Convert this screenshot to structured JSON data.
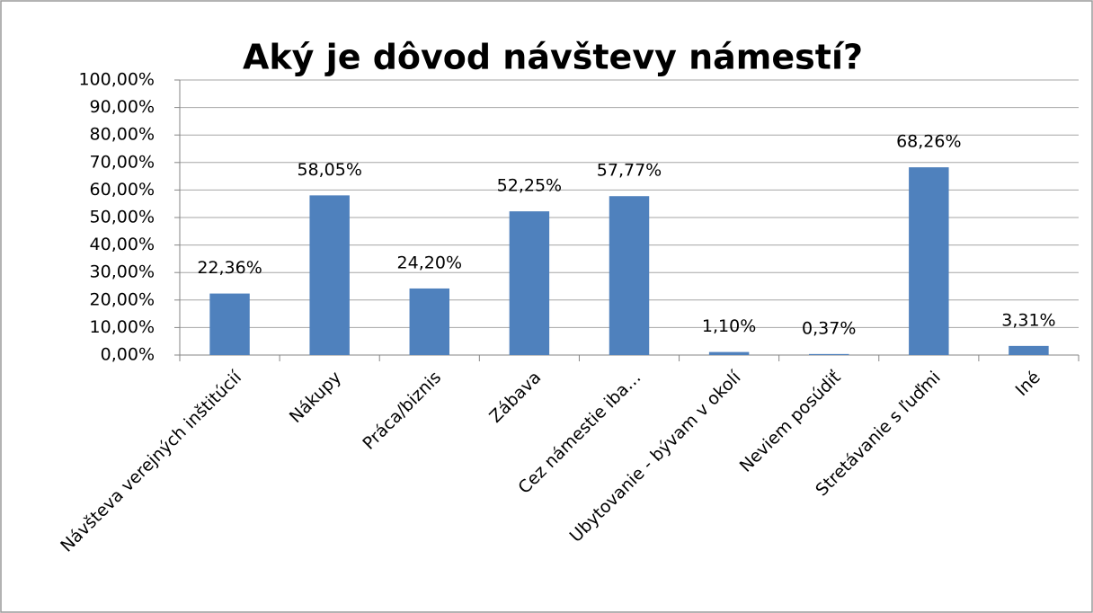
{
  "chart_data": {
    "type": "bar",
    "title": "Aký je dôvod návštevy námestí?",
    "categories": [
      "Návšteva verejných inštitúcií",
      "Nákupy",
      "Práca/biznis",
      "Zábava",
      "Cez námestie iba…",
      "Ubytovanie - bývam v okolí",
      "Neviem posúdiť",
      "Stretávanie s ľuďmi",
      "Iné"
    ],
    "values": [
      22.36,
      58.05,
      24.2,
      52.25,
      57.77,
      1.1,
      0.37,
      68.26,
      3.31
    ],
    "value_labels": [
      "22,36%",
      "58,05%",
      "24,20%",
      "52,25%",
      "57,77%",
      "1,10%",
      "0,37%",
      "68,26%",
      "3,31%"
    ],
    "color": "#4f81bd",
    "ylim": [
      0,
      100
    ],
    "yticks": [
      {
        "value": 0,
        "label": "0,00%"
      },
      {
        "value": 10,
        "label": "10,00%"
      },
      {
        "value": 20,
        "label": "20,00%"
      },
      {
        "value": 30,
        "label": "30,00%"
      },
      {
        "value": 40,
        "label": "40,00%"
      },
      {
        "value": 50,
        "label": "50,00%"
      },
      {
        "value": 60,
        "label": "60,00%"
      },
      {
        "value": 70,
        "label": "70,00%"
      },
      {
        "value": 80,
        "label": "80,00%"
      },
      {
        "value": 90,
        "label": "90,00%"
      },
      {
        "value": 100,
        "label": "100,00%"
      }
    ],
    "grid": true
  }
}
